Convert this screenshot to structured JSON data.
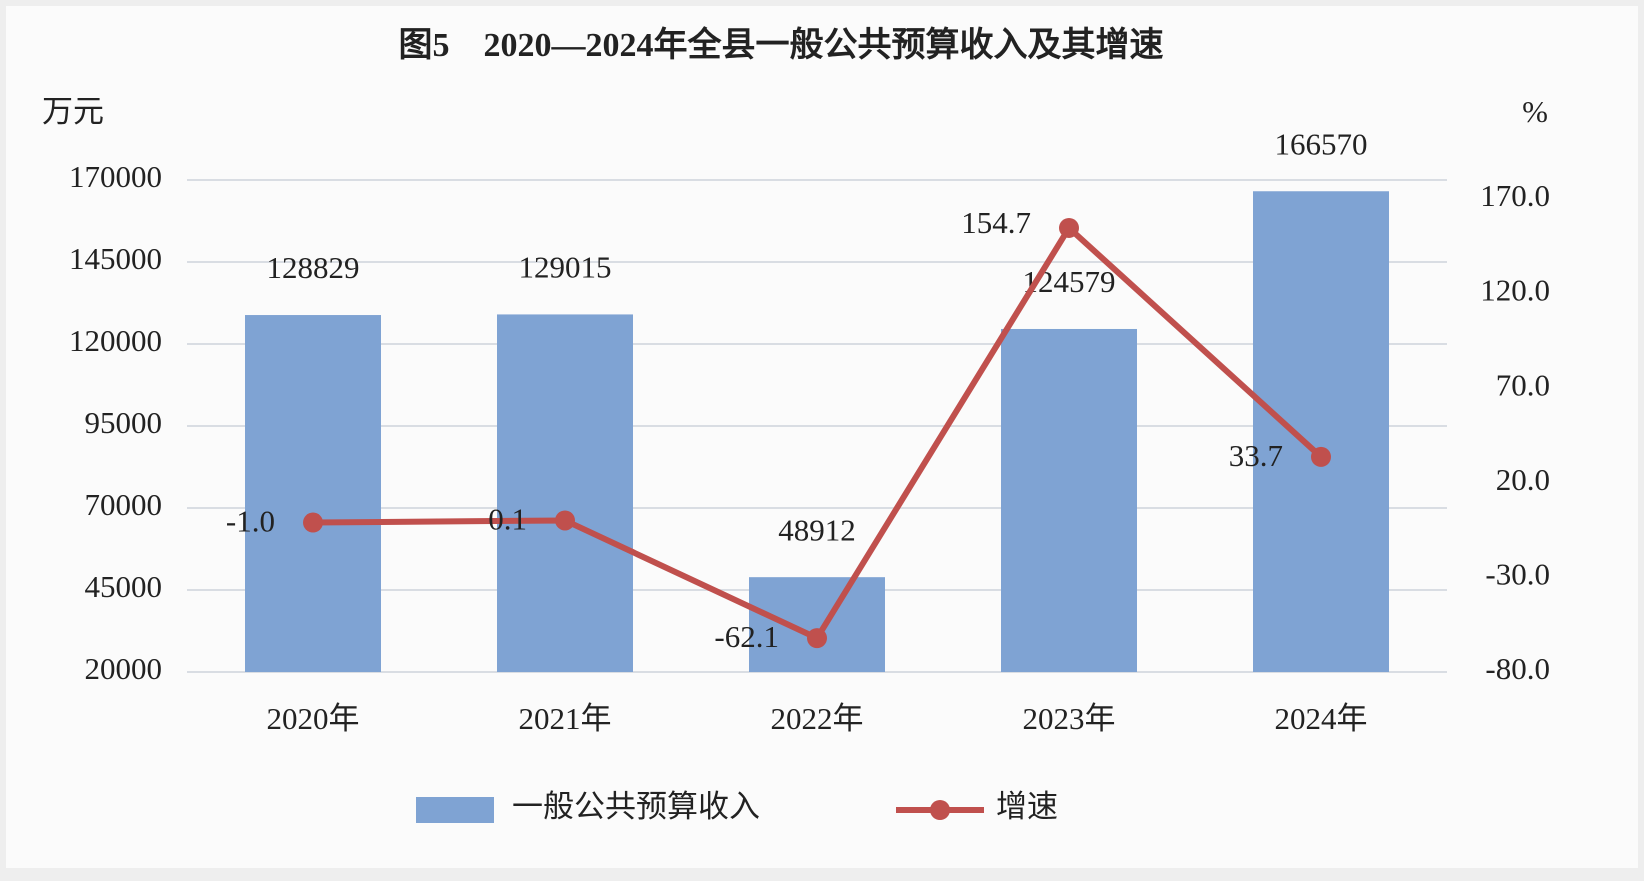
{
  "chart_data": {
    "type": "bar",
    "title": "图5　2020—2024年全县一般公共预算收入及其增速",
    "y_label": "万元",
    "y2_label": "%",
    "categories": [
      "2020年",
      "2021年",
      "2022年",
      "2023年",
      "2024年"
    ],
    "series": [
      {
        "name": "一般公共预算收入",
        "type": "bar",
        "color": "#7fa3d3",
        "values": [
          128829,
          129015,
          48912,
          124579,
          166570
        ]
      },
      {
        "name": "增速",
        "type": "line",
        "axis": "y2",
        "color": "#c0504d",
        "values": [
          -1.0,
          0.1,
          -62.1,
          154.7,
          33.7
        ],
        "value_labels": [
          "-1.0",
          "0.1",
          "-62.1",
          "154.7",
          "33.7"
        ]
      }
    ],
    "ylim": [
      20000,
      170000
    ],
    "yticks": [
      20000,
      45000,
      70000,
      95000,
      120000,
      145000,
      170000
    ],
    "y2lim": [
      -80,
      170
    ],
    "y2ticks": [
      {
        "value": -80,
        "label": "-80.0"
      },
      {
        "value": -30,
        "label": "-30.0"
      },
      {
        "value": 20,
        "label": "20.0"
      },
      {
        "value": 70,
        "label": "70.0"
      },
      {
        "value": 120,
        "label": "120.0"
      },
      {
        "value": 170,
        "label": "170.0"
      }
    ],
    "grid": true,
    "legend": "bottom"
  }
}
